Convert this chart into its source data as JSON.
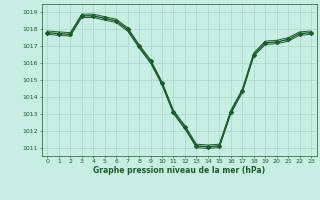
{
  "title": "Graphe pression niveau de la mer (hPa)",
  "bg_color": "#c8eee4",
  "grid_color": "#a8d8c8",
  "line_color": "#1a5c2a",
  "xlim": [
    -0.5,
    23.5
  ],
  "ylim": [
    1010.5,
    1019.5
  ],
  "yticks": [
    1011,
    1012,
    1013,
    1014,
    1015,
    1016,
    1017,
    1018,
    1019
  ],
  "xticks": [
    0,
    1,
    2,
    3,
    4,
    5,
    6,
    7,
    8,
    9,
    10,
    11,
    12,
    13,
    14,
    15,
    16,
    17,
    18,
    19,
    20,
    21,
    22,
    23
  ],
  "series": [
    {
      "x": [
        0,
        1,
        2,
        3,
        4,
        5,
        6,
        7,
        8,
        9,
        10,
        11,
        12,
        13,
        14,
        15,
        16,
        17,
        18,
        19,
        20,
        21,
        22,
        23
      ],
      "y": [
        1017.8,
        1017.75,
        1017.7,
        1018.8,
        1018.8,
        1018.65,
        1018.5,
        1018.0,
        1017.0,
        1016.1,
        1014.8,
        1013.1,
        1012.2,
        1011.1,
        1011.05,
        1011.1,
        1013.1,
        1014.35,
        1016.5,
        1017.2,
        1017.25,
        1017.4,
        1017.75,
        1017.8
      ],
      "marker": "D",
      "markersize": 2.0,
      "linewidth": 1.0,
      "has_marker": true
    },
    {
      "x": [
        0,
        1,
        2,
        3,
        4,
        5,
        6,
        7,
        8,
        9,
        10,
        11,
        12,
        13,
        14,
        15,
        16,
        17,
        18,
        19,
        20,
        21,
        22,
        23
      ],
      "y": [
        1017.9,
        1017.85,
        1017.8,
        1018.9,
        1018.9,
        1018.75,
        1018.6,
        1018.1,
        1017.1,
        1016.2,
        1014.9,
        1013.2,
        1012.3,
        1011.2,
        1011.15,
        1011.2,
        1013.2,
        1014.45,
        1016.6,
        1017.3,
        1017.35,
        1017.5,
        1017.85,
        1017.9
      ],
      "marker": null,
      "markersize": 0,
      "linewidth": 0.7,
      "has_marker": false
    },
    {
      "x": [
        0,
        1,
        2,
        3,
        4,
        5,
        6,
        7,
        8,
        9,
        10,
        11,
        12,
        13,
        14,
        15,
        16,
        17,
        18,
        19,
        20,
        21,
        22,
        23
      ],
      "y": [
        1017.7,
        1017.65,
        1017.6,
        1018.7,
        1018.7,
        1018.55,
        1018.4,
        1017.9,
        1016.9,
        1016.0,
        1014.7,
        1013.0,
        1012.1,
        1011.0,
        1010.95,
        1011.0,
        1013.0,
        1014.25,
        1016.4,
        1017.1,
        1017.15,
        1017.3,
        1017.65,
        1017.7
      ],
      "marker": null,
      "markersize": 0,
      "linewidth": 0.7,
      "has_marker": false
    }
  ]
}
